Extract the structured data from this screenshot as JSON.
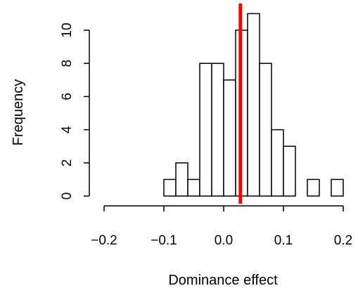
{
  "chart_data": {
    "type": "bar",
    "subtype": "histogram",
    "title": "",
    "xlabel": "Dominance effect",
    "ylabel": "Frequency",
    "bin_width": 0.02,
    "bin_edges": [
      -0.1,
      -0.08,
      -0.06,
      -0.04,
      -0.02,
      0.0,
      0.02,
      0.04,
      0.06,
      0.08,
      0.1,
      0.12,
      0.14,
      0.16,
      0.18,
      0.2
    ],
    "values": [
      1,
      2,
      1,
      8,
      8,
      7,
      10,
      11,
      8,
      4,
      3,
      0,
      1,
      0,
      1
    ],
    "xlim": [
      -0.2,
      0.2
    ],
    "ylim": [
      0,
      11
    ],
    "x_ticks": [
      -0.2,
      -0.1,
      0.0,
      0.1,
      0.2
    ],
    "x_tick_labels": [
      "−0.2",
      "−0.1",
      "0.0",
      "0.1",
      "0.2"
    ],
    "y_ticks": [
      0,
      2,
      4,
      6,
      8,
      10
    ],
    "y_tick_labels": [
      "0",
      "2",
      "4",
      "6",
      "8",
      "10"
    ],
    "reference_line": {
      "x": 0.028,
      "color": "#ff0000"
    },
    "bar_fill": "#ffffff",
    "bar_stroke": "#000000",
    "grid": false
  }
}
